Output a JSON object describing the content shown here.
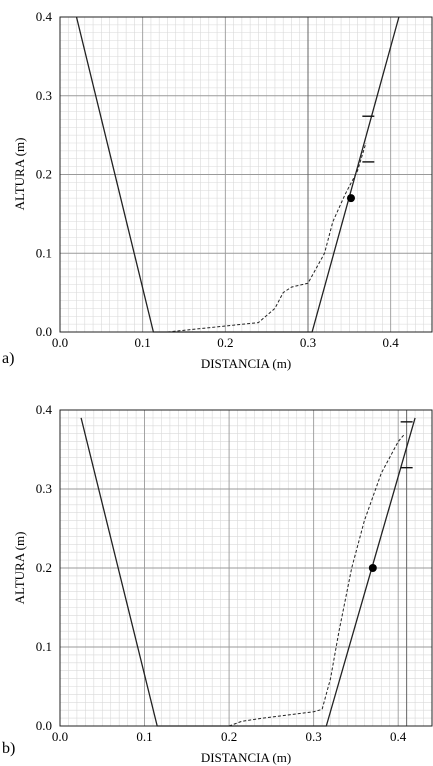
{
  "chart_data": [
    {
      "type": "line",
      "panel_label": "a)",
      "xlabel": "DISTANCIA (m)",
      "ylabel": "ALTURA (m)",
      "xlim": [
        0.0,
        0.45
      ],
      "ylim": [
        0.0,
        0.4
      ],
      "x_ticks": [
        "0.0",
        "0.1",
        "0.2",
        "0.3",
        "0.4"
      ],
      "y_ticks": [
        "0.0",
        "0.1",
        "0.2",
        "0.3",
        "0.4"
      ],
      "grid": true,
      "grid_minor": true,
      "series": [
        {
          "style": "solid",
          "x": [
            0.02,
            0.113,
            0.305,
            0.41
          ],
          "y": [
            0.4,
            0.0,
            0.0,
            0.4
          ]
        },
        {
          "style": "dashed",
          "x": [
            0.13,
            0.24,
            0.26,
            0.27,
            0.28,
            0.3,
            0.32,
            0.33,
            0.345,
            0.36,
            0.37
          ],
          "y": [
            0.0,
            0.012,
            0.03,
            0.05,
            0.057,
            0.062,
            0.1,
            0.14,
            0.175,
            0.205,
            0.24
          ]
        }
      ],
      "markers": [
        {
          "x": 0.352,
          "y": 0.17
        }
      ],
      "ref_marks": [
        {
          "x": 0.373,
          "y": 0.274
        },
        {
          "x": 0.373,
          "y": 0.216
        }
      ],
      "vline": 0.3
    },
    {
      "type": "line",
      "panel_label": "b)",
      "xlabel": "DISTANCIA (m)",
      "ylabel": "ALTURA (m)",
      "xlim": [
        0.0,
        0.44
      ],
      "ylim": [
        0.0,
        0.4
      ],
      "x_ticks": [
        "0.0",
        "0.1",
        "0.2",
        "0.3",
        "0.4"
      ],
      "y_ticks": [
        "0.0",
        "0.1",
        "0.2",
        "0.3",
        "0.4"
      ],
      "grid": true,
      "grid_minor": true,
      "series": [
        {
          "style": "solid",
          "x": [
            0.025,
            0.115,
            0.315,
            0.42
          ],
          "y": [
            0.39,
            0.0,
            0.0,
            0.39
          ]
        },
        {
          "style": "dashed",
          "x": [
            0.2,
            0.215,
            0.24,
            0.3,
            0.31,
            0.32,
            0.33,
            0.345,
            0.36,
            0.38,
            0.4,
            0.408
          ],
          "y": [
            0.0,
            0.006,
            0.01,
            0.018,
            0.021,
            0.06,
            0.12,
            0.2,
            0.26,
            0.32,
            0.36,
            0.37
          ]
        }
      ],
      "markers": [
        {
          "x": 0.37,
          "y": 0.2
        }
      ],
      "ref_marks": [
        {
          "x": 0.41,
          "y": 0.385
        },
        {
          "x": 0.41,
          "y": 0.327
        }
      ],
      "vline": 0.41
    }
  ]
}
